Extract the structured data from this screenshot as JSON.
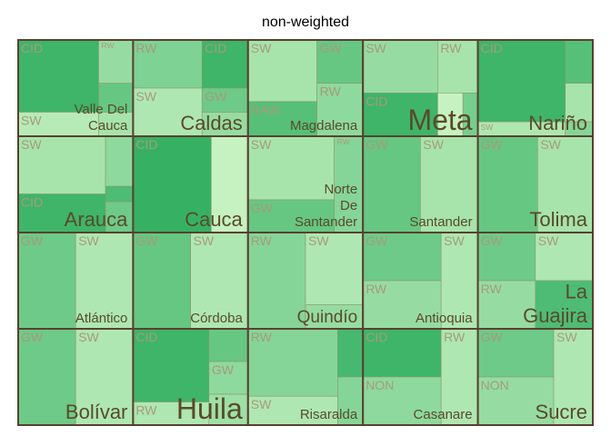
{
  "chart_data": {
    "type": "treemap",
    "title": "non-weighted",
    "grid": {
      "columns": 5,
      "rows": 4
    },
    "group_label_color": "#5a4a2a",
    "subgroup_label_color": "#a89a7a",
    "border_color": "#5a4030",
    "groups": [
      {
        "name": "Valle Del Cauca",
        "label_lines": [
          "Valle Del",
          "Cauca"
        ],
        "label_size": "small",
        "tiles": [
          {
            "label": "CID",
            "shade": 0.85,
            "rect": [
              0,
              0,
              0.7,
              0.75
            ]
          },
          {
            "label": "RW",
            "shade": 0.3,
            "rect": [
              0.7,
              0,
              0.3,
              0.45
            ]
          },
          {
            "label": "",
            "shade": 0.6,
            "rect": [
              0.7,
              0.45,
              0.3,
              0.3
            ]
          },
          {
            "label": "SW",
            "shade": 0.1,
            "rect": [
              0,
              0.75,
              0.7,
              0.25
            ]
          },
          {
            "label": "",
            "shade": 0.2,
            "rect": [
              0.7,
              0.75,
              0.3,
              0.25
            ]
          }
        ]
      },
      {
        "name": "Caldas",
        "label_lines": [
          "Caldas"
        ],
        "label_size": "large",
        "tiles": [
          {
            "label": "RW",
            "shade": 0.45,
            "rect": [
              0,
              0,
              0.6,
              0.5
            ]
          },
          {
            "label": "CID",
            "shade": 0.85,
            "rect": [
              0.6,
              0,
              0.4,
              0.5
            ]
          },
          {
            "label": "SW",
            "shade": 0.15,
            "rect": [
              0,
              0.5,
              0.6,
              0.5
            ]
          },
          {
            "label": "GW",
            "shade": 0.55,
            "rect": [
              0.6,
              0.5,
              0.4,
              0.25
            ]
          },
          {
            "label": "",
            "shade": 0.3,
            "rect": [
              0.6,
              0.75,
              0.4,
              0.25
            ]
          }
        ]
      },
      {
        "name": "Magdalena",
        "label_lines": [
          "Magdalena"
        ],
        "label_size": "small",
        "tiles": [
          {
            "label": "SW",
            "shade": 0.2,
            "rect": [
              0,
              0,
              0.6,
              0.64
            ]
          },
          {
            "label": "GW",
            "shade": 0.6,
            "rect": [
              0.6,
              0,
              0.4,
              0.45
            ]
          },
          {
            "label": "RW",
            "shade": 0.35,
            "rect": [
              0.6,
              0.45,
              0.4,
              0.55
            ]
          },
          {
            "label": "RAW",
            "shade": 0.7,
            "rect": [
              0,
              0.64,
              0.6,
              0.36
            ]
          }
        ]
      },
      {
        "name": "Meta",
        "label_lines": [
          "Meta"
        ],
        "label_size": "xlarge",
        "tiles": [
          {
            "label": "SW",
            "shade": 0.3,
            "rect": [
              0,
              0,
              0.65,
              0.55
            ]
          },
          {
            "label": "RW",
            "shade": 0.2,
            "rect": [
              0.65,
              0,
              0.35,
              0.55
            ]
          },
          {
            "label": "CID",
            "shade": 0.85,
            "rect": [
              0,
              0.55,
              0.65,
              0.45
            ]
          },
          {
            "label": "",
            "shade": 0.0,
            "rect": [
              0.65,
              0.55,
              0.22,
              0.45
            ]
          },
          {
            "label": "",
            "shade": 0.5,
            "rect": [
              0.87,
              0.55,
              0.13,
              0.45
            ]
          }
        ]
      },
      {
        "name": "Nariño",
        "label_lines": [
          "Nariño"
        ],
        "label_size": "large",
        "tiles": [
          {
            "label": "CID",
            "shade": 0.85,
            "rect": [
              0,
              0,
              0.76,
              0.85
            ]
          },
          {
            "label": "",
            "shade": 0.7,
            "rect": [
              0.76,
              0,
              0.24,
              0.45
            ]
          },
          {
            "label": "",
            "shade": 0.2,
            "rect": [
              0.76,
              0.45,
              0.24,
              0.4
            ]
          },
          {
            "label": "SW",
            "shade": 0.15,
            "rect": [
              0,
              0.85,
              0.76,
              0.15
            ]
          },
          {
            "label": "",
            "shade": 0.4,
            "rect": [
              0.76,
              0.85,
              0.24,
              0.15
            ]
          }
        ]
      },
      {
        "name": "Arauca",
        "label_lines": [
          "Arauca"
        ],
        "label_size": "large",
        "tiles": [
          {
            "label": "SW",
            "shade": 0.2,
            "rect": [
              0,
              0,
              0.76,
              0.6
            ]
          },
          {
            "label": "",
            "shade": 0.35,
            "rect": [
              0.76,
              0,
              0.24,
              0.52
            ]
          },
          {
            "label": "",
            "shade": 0.75,
            "rect": [
              0.76,
              0.52,
              0.24,
              0.16
            ]
          },
          {
            "label": "CID",
            "shade": 0.85,
            "rect": [
              0,
              0.6,
              0.76,
              0.4
            ]
          },
          {
            "label": "",
            "shade": 0.55,
            "rect": [
              0.76,
              0.68,
              0.24,
              0.32
            ]
          }
        ]
      },
      {
        "name": "Cauca",
        "label_lines": [
          "Cauca"
        ],
        "label_size": "large",
        "tiles": [
          {
            "label": "CID",
            "shade": 0.9,
            "rect": [
              0,
              0,
              0.68,
              1
            ]
          },
          {
            "label": "",
            "shade": 0.0,
            "rect": [
              0.68,
              0,
              0.32,
              1
            ]
          }
        ]
      },
      {
        "name": "Norte De Santander",
        "label_lines": [
          "Norte",
          "De",
          "Santander"
        ],
        "label_size": "small",
        "tiles": [
          {
            "label": "SW",
            "shade": 0.2,
            "rect": [
              0,
              0,
              0.75,
              0.66
            ]
          },
          {
            "label": "RW",
            "shade": 0.4,
            "rect": [
              0.75,
              0,
              0.25,
              1
            ]
          },
          {
            "label": "GW",
            "shade": 0.6,
            "rect": [
              0,
              0.66,
              0.75,
              0.34
            ]
          }
        ]
      },
      {
        "name": "Santander",
        "label_lines": [
          "Santander"
        ],
        "label_size": "small",
        "tiles": [
          {
            "label": "GW",
            "shade": 0.6,
            "rect": [
              0,
              0,
              0.5,
              1
            ]
          },
          {
            "label": "SW",
            "shade": 0.2,
            "rect": [
              0.5,
              0,
              0.5,
              1
            ]
          }
        ]
      },
      {
        "name": "Tolima",
        "label_lines": [
          "Tolima"
        ],
        "label_size": "large",
        "tiles": [
          {
            "label": "GW",
            "shade": 0.6,
            "rect": [
              0,
              0,
              0.52,
              1
            ]
          },
          {
            "label": "SW",
            "shade": 0.2,
            "rect": [
              0.52,
              0,
              0.48,
              1
            ]
          }
        ]
      },
      {
        "name": "Atlántico",
        "label_lines": [
          "Atlántico"
        ],
        "label_size": "small",
        "tiles": [
          {
            "label": "GW",
            "shade": 0.55,
            "rect": [
              0,
              0,
              0.5,
              1
            ]
          },
          {
            "label": "SW",
            "shade": 0.15,
            "rect": [
              0.5,
              0,
              0.5,
              1
            ]
          }
        ]
      },
      {
        "name": "Córdoba",
        "label_lines": [
          "Córdoba"
        ],
        "label_size": "small",
        "tiles": [
          {
            "label": "GW",
            "shade": 0.6,
            "rect": [
              0,
              0,
              0.5,
              1
            ]
          },
          {
            "label": "SW",
            "shade": 0.15,
            "rect": [
              0.5,
              0,
              0.5,
              1
            ]
          }
        ]
      },
      {
        "name": "Quindío",
        "label_lines": [
          "Quindío"
        ],
        "label_size": "medium",
        "tiles": [
          {
            "label": "RW",
            "shade": 0.4,
            "rect": [
              0,
              0,
              0.5,
              1
            ]
          },
          {
            "label": "SW",
            "shade": 0.15,
            "rect": [
              0.5,
              0,
              0.5,
              0.75
            ]
          },
          {
            "label": "",
            "shade": 0.3,
            "rect": [
              0.5,
              0.75,
              0.5,
              0.25
            ]
          }
        ]
      },
      {
        "name": "Antioquia",
        "label_lines": [
          "Antioquia"
        ],
        "label_size": "small",
        "tiles": [
          {
            "label": "GW",
            "shade": 0.55,
            "rect": [
              0,
              0,
              0.68,
              0.5
            ]
          },
          {
            "label": "RW",
            "shade": 0.3,
            "rect": [
              0,
              0.5,
              0.68,
              0.5
            ]
          },
          {
            "label": "SW",
            "shade": 0.15,
            "rect": [
              0.68,
              0,
              0.32,
              1
            ]
          }
        ]
      },
      {
        "name": "La Guajira",
        "label_lines": [
          "La",
          "Guajira"
        ],
        "label_size": "large",
        "tiles": [
          {
            "label": "GW",
            "shade": 0.55,
            "rect": [
              0,
              0,
              0.5,
              0.5
            ]
          },
          {
            "label": "SW",
            "shade": 0.15,
            "rect": [
              0.5,
              0,
              0.5,
              0.5
            ]
          },
          {
            "label": "RW",
            "shade": 0.3,
            "rect": [
              0,
              0.5,
              0.5,
              0.5
            ]
          },
          {
            "label": "",
            "shade": 0.75,
            "rect": [
              0.5,
              0.5,
              0.5,
              0.5
            ]
          }
        ]
      },
      {
        "name": "Bolívar",
        "label_lines": [
          "Bolívar"
        ],
        "label_size": "large",
        "tiles": [
          {
            "label": "GW",
            "shade": 0.55,
            "rect": [
              0,
              0,
              0.5,
              1
            ]
          },
          {
            "label": "SW",
            "shade": 0.15,
            "rect": [
              0.5,
              0,
              0.5,
              1
            ]
          }
        ]
      },
      {
        "name": "Huila",
        "label_lines": [
          "Huila"
        ],
        "label_size": "xlarge",
        "tiles": [
          {
            "label": "CID",
            "shade": 0.85,
            "rect": [
              0,
              0,
              0.66,
              0.76
            ]
          },
          {
            "label": "",
            "shade": 0.6,
            "rect": [
              0.66,
              0,
              0.34,
              0.34
            ]
          },
          {
            "label": "GW",
            "shade": 0.35,
            "rect": [
              0.66,
              0.34,
              0.34,
              0.34
            ]
          },
          {
            "label": "RW",
            "shade": 0.15,
            "rect": [
              0,
              0.76,
              0.66,
              0.24
            ]
          },
          {
            "label": "",
            "shade": 0.25,
            "rect": [
              0.66,
              0.68,
              0.34,
              0.32
            ]
          }
        ]
      },
      {
        "name": "Risaralda",
        "label_lines": [
          "Risaralda"
        ],
        "label_size": "small",
        "tiles": [
          {
            "label": "RW",
            "shade": 0.4,
            "rect": [
              0,
              0,
              0.78,
              0.7
            ]
          },
          {
            "label": "",
            "shade": 0.8,
            "rect": [
              0.78,
              0,
              0.22,
              0.5
            ]
          },
          {
            "label": "",
            "shade": 0.4,
            "rect": [
              0.78,
              0.5,
              0.22,
              0.5
            ]
          },
          {
            "label": "SW",
            "shade": 0.15,
            "rect": [
              0,
              0.7,
              0.78,
              0.3
            ]
          }
        ]
      },
      {
        "name": "Casanare",
        "label_lines": [
          "Casanare"
        ],
        "label_size": "small",
        "tiles": [
          {
            "label": "CID",
            "shade": 0.85,
            "rect": [
              0,
              0,
              0.68,
              0.5
            ]
          },
          {
            "label": "NON",
            "shade": 0.35,
            "rect": [
              0,
              0.5,
              0.68,
              0.5
            ]
          },
          {
            "label": "RW",
            "shade": 0.15,
            "rect": [
              0.68,
              0,
              0.32,
              1
            ]
          }
        ]
      },
      {
        "name": "Sucre",
        "label_lines": [
          "Sucre"
        ],
        "label_size": "large",
        "tiles": [
          {
            "label": "GW",
            "shade": 0.55,
            "rect": [
              0,
              0,
              0.66,
              0.5
            ]
          },
          {
            "label": "NON",
            "shade": 0.3,
            "rect": [
              0,
              0.5,
              0.66,
              0.5
            ]
          },
          {
            "label": "SW",
            "shade": 0.15,
            "rect": [
              0.66,
              0,
              0.34,
              1
            ]
          }
        ]
      }
    ]
  }
}
